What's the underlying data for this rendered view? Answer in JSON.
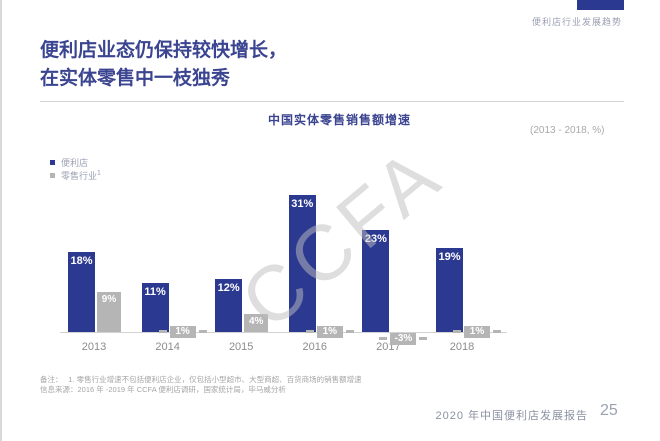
{
  "page": {
    "corner_label": "便利店行业发展趋势",
    "title_line1": "便利店业态仍保持较快增长，",
    "title_line2": "在实体零售中一枝独秀",
    "watermark": "CCFA",
    "note_line1": "备注：　 1. 零售行业增速不包括便利店企业，仅包括小型超市、大型商超、百货商场的销售额增速",
    "note_line2": "信息来源：2016 年 -2019 年 CCFA 便利店调研，国家统计局，毕马威分析",
    "footer_report": "2020 年中国便利店发展报告",
    "page_number": "25"
  },
  "chart_data": {
    "type": "bar",
    "title": "中国实体零售销售额增速",
    "subtitle": "(2013 - 2018, %)",
    "categories": [
      "2013",
      "2014",
      "2015",
      "2016",
      "2017",
      "2018"
    ],
    "series": [
      {
        "name": "便利店",
        "sup": "",
        "color": "#2b3990",
        "values": [
          18,
          11,
          12,
          31,
          23,
          19
        ]
      },
      {
        "name": "零售行业",
        "sup": "1",
        "color": "#b5b5b5",
        "values": [
          9,
          1,
          4,
          1,
          -3,
          1
        ]
      }
    ],
    "unit": "%",
    "ylim": [
      -3,
      31
    ],
    "grid": false,
    "legend_position": "top-left"
  },
  "colors": {
    "primary_blue": "#2b3990",
    "bar_gray": "#b5b5b5",
    "title_navy": "#3a4490"
  }
}
